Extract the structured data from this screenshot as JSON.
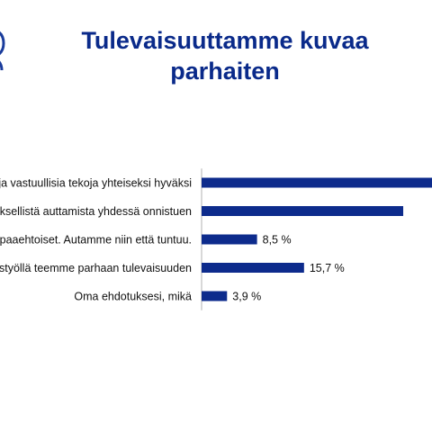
{
  "page": {
    "title": "Tulevaisuuttamme kuvaa parhaiten"
  },
  "colors": {
    "bar": "#0d2b8c",
    "title": "#0a2a8a",
    "axis": "#b0b0b0"
  },
  "chart_data": {
    "type": "bar",
    "orientation": "horizontal",
    "categories": [
      "ja vastuullisia tekoja yhteiseksi hyväksi",
      "ksellistä auttamista yhdessä onnistuen",
      "paaehtoiset. Autamme niin että tuntuu.",
      "styöllä teemme parhaan tulevaisuuden",
      "Oma ehdotuksesi, mikä"
    ],
    "values": [
      41.0,
      30.9,
      8.5,
      15.7,
      3.9
    ],
    "value_labels": [
      "",
      "",
      "8,5 %",
      "15,7 %",
      "3,9 %"
    ],
    "unit": "%",
    "xlim": [
      0,
      40
    ],
    "legend": "none",
    "grid": false
  }
}
